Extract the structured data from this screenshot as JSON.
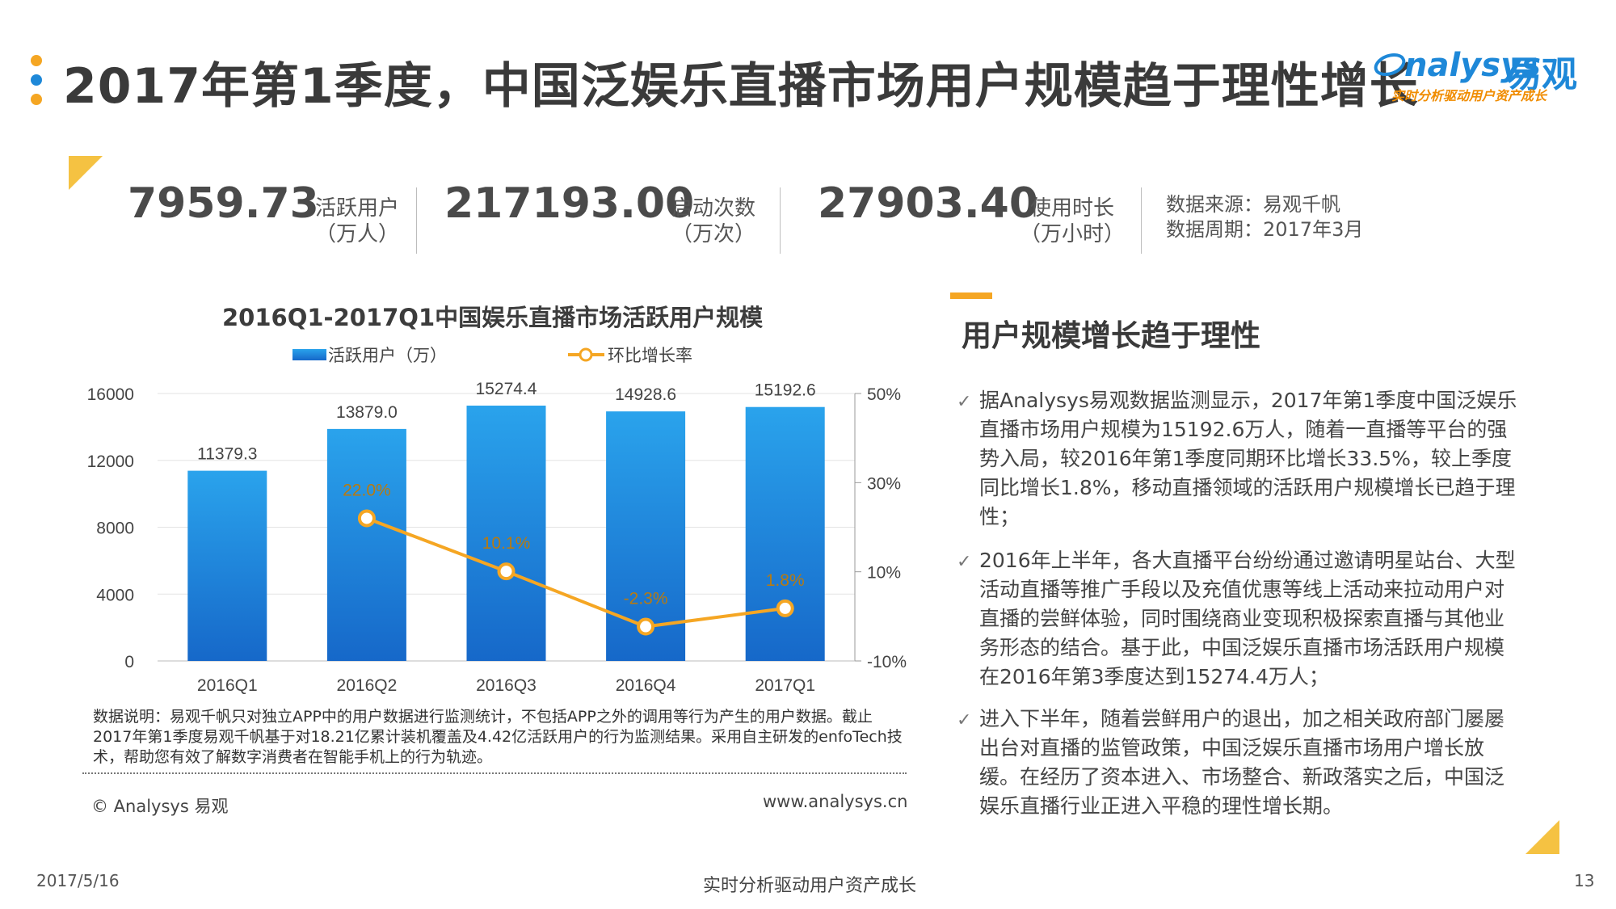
{
  "header": {
    "title": "2017年第1季度，中国泛娱乐直播市场用户规模趋于理性增长",
    "logo_text": "nalysys",
    "logo_cn": "易观",
    "logo_slogan": "实时分析驱动用户资产成长",
    "colors": {
      "dot_top": "#f5a623",
      "dot_mid": "#1e88d8",
      "dot_bot": "#f5a623"
    }
  },
  "stats": [
    {
      "value": "7959.73",
      "label": "活跃用户",
      "unit": "（万人）"
    },
    {
      "value": "217193.00",
      "label": "启动次数",
      "unit": "（万次）"
    },
    {
      "value": "27903.40",
      "label": "使用时长",
      "unit": "（万小时）"
    }
  ],
  "source": {
    "line1": "数据来源：易观千帆",
    "line2": "数据周期：2017年3月"
  },
  "chart_data": {
    "type": "bar",
    "title": "2016Q1-2017Q1中国娱乐直播市场活跃用户规模",
    "categories": [
      "2016Q1",
      "2016Q2",
      "2016Q3",
      "2016Q4",
      "2017Q1"
    ],
    "series": [
      {
        "name": "活跃用户（万）",
        "type": "bar",
        "axis": "left",
        "values": [
          11379.3,
          13879.0,
          15274.4,
          14928.6,
          15192.6
        ],
        "labels": [
          "11379.3",
          "13879.0",
          "15274.4",
          "14928.6",
          "15192.6"
        ],
        "color": "#1e88d8"
      },
      {
        "name": "环比增长率",
        "type": "line",
        "axis": "right",
        "values": [
          null,
          22.0,
          10.1,
          -2.3,
          1.8
        ],
        "labels": [
          "",
          "22.0%",
          "10.1%",
          "-2.3%",
          "1.8%"
        ],
        "color": "#f5a623"
      }
    ],
    "ylim": [
      0,
      16000
    ],
    "y_ticks": [
      "0",
      "4000",
      "8000",
      "12000",
      "16000"
    ],
    "y2lim": [
      -10,
      50
    ],
    "y2_ticks": [
      "-10%",
      "10%",
      "30%",
      "50%"
    ],
    "legend": "top-center",
    "grid": true
  },
  "chart_note": {
    "text": "数据说明：易观千帆只对独立APP中的用户数据进行监测统计，不包括APP之外的调用等行为产生的用户数据。截止2017年第1季度易观千帆基于对18.21亿累计装机覆盖及4.42亿活跃用户的行为监测结果。采用自主研发的enfoTech技术，帮助您有效了解数字消费者在智能手机上的行为轨迹。",
    "copyright": "© Analysys 易观",
    "website": "www.analysys.cn"
  },
  "side": {
    "heading": "用户规模增长趋于理性",
    "bullets": [
      "据Analysys易观数据监测显示，2017年第1季度中国泛娱乐直播市场用户规模为15192.6万人，随着一直播等平台的强势入局，较2016年第1季度同期环比增长33.5%，较上季度同比增长1.8%，移动直播领域的活跃用户规模增长已趋于理性；",
      "2016年上半年，各大直播平台纷纷通过邀请明星站台、大型活动直播等推广手段以及充值优惠等线上活动来拉动用户对直播的尝鲜体验，同时围绕商业变现积极探索直播与其他业务形态的结合。基于此，中国泛娱乐直播市场活跃用户规模在2016年第3季度达到15274.4万人；",
      "进入下半年，随着尝鲜用户的退出，加之相关政府部门屡屡出台对直播的监管政策，中国泛娱乐直播市场用户增长放缓。在经历了资本进入、市场整合、新政落实之后，中国泛娱乐直播行业正进入平稳的理性增长期。"
    ]
  },
  "footer": {
    "date": "2017/5/16",
    "slogan": "实时分析驱动用户资产成长",
    "page": "13"
  }
}
